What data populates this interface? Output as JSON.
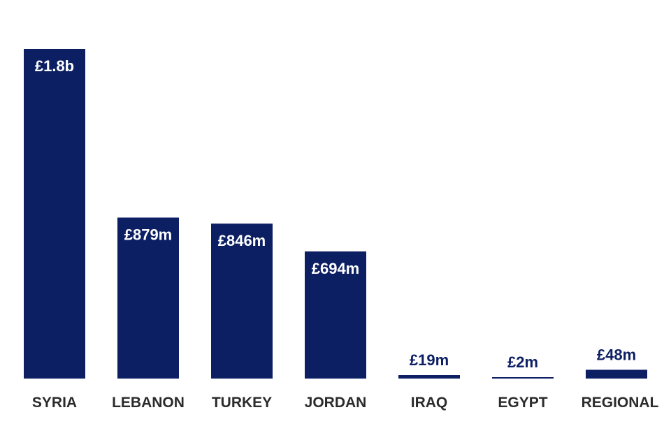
{
  "chart_data": {
    "type": "bar",
    "categories": [
      "SYRIA",
      "LEBANON",
      "TURKEY",
      "JORDAN",
      "IRAQ",
      "EGYPT",
      "REGIONAL"
    ],
    "values": [
      1800,
      879,
      846,
      694,
      19,
      2,
      48
    ],
    "value_labels": [
      "£1.8b",
      "£879m",
      "£846m",
      "£694m",
      "£19m",
      "£2m",
      "£48m"
    ],
    "unit": "£ million",
    "ylim": [
      0,
      1800
    ],
    "title": "",
    "xlabel": "",
    "ylabel": "",
    "grid": false,
    "colors": {
      "bar": "#0d1f63",
      "label_inside": "#ffffff",
      "label_outside": "#0d1f63",
      "category_text": "#2b2b2b"
    }
  }
}
